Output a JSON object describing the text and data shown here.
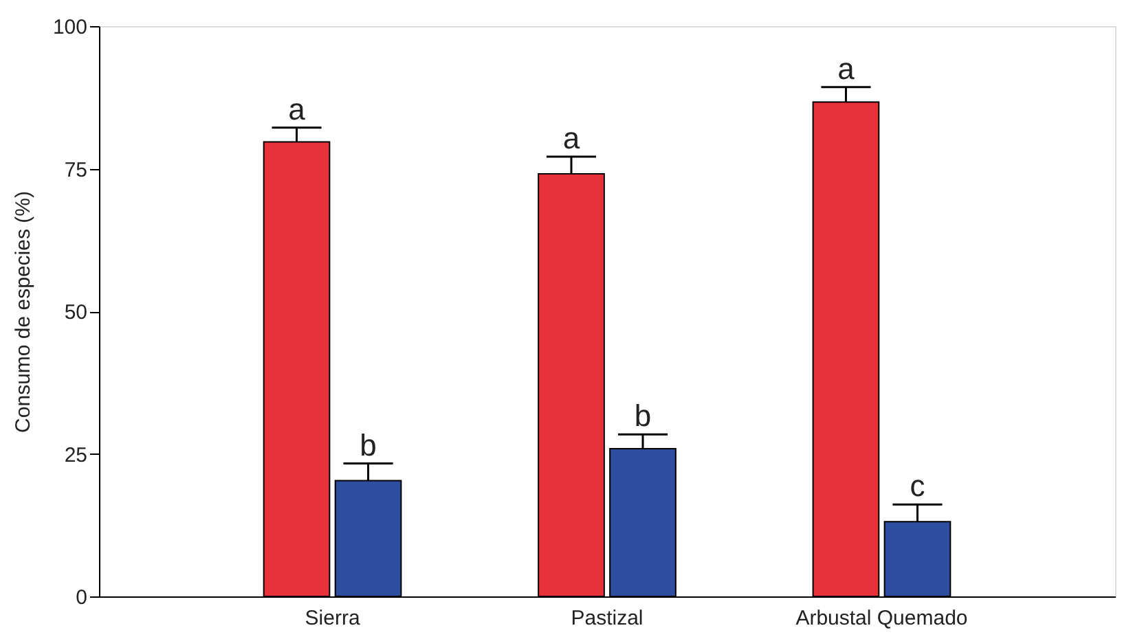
{
  "chart_data": {
    "type": "bar",
    "ylabel": "Consumo de especies (%)",
    "categories": [
      "Sierra",
      "Pastizal",
      "Arbustal Quemado"
    ],
    "ylim": [
      0,
      100
    ],
    "yticks": [
      0,
      25,
      50,
      75,
      100
    ],
    "grid": false,
    "legend": false,
    "series": [
      {
        "color": "#e8323a",
        "values": [
          79.7,
          74.1,
          86.7
        ],
        "errors": [
          [
            79.7,
            82.2
          ],
          [
            74.1,
            77.1
          ],
          [
            86.7,
            89.3
          ]
        ]
      },
      {
        "color": "#2e4fa0",
        "values": [
          20.3,
          25.9,
          13.1
        ],
        "errors": [
          [
            20.3,
            23.3
          ],
          [
            25.9,
            28.4
          ],
          [
            13.1,
            16.1
          ]
        ]
      }
    ],
    "annotations": [
      "a",
      "b",
      "a",
      "b",
      "a",
      "c"
    ]
  }
}
